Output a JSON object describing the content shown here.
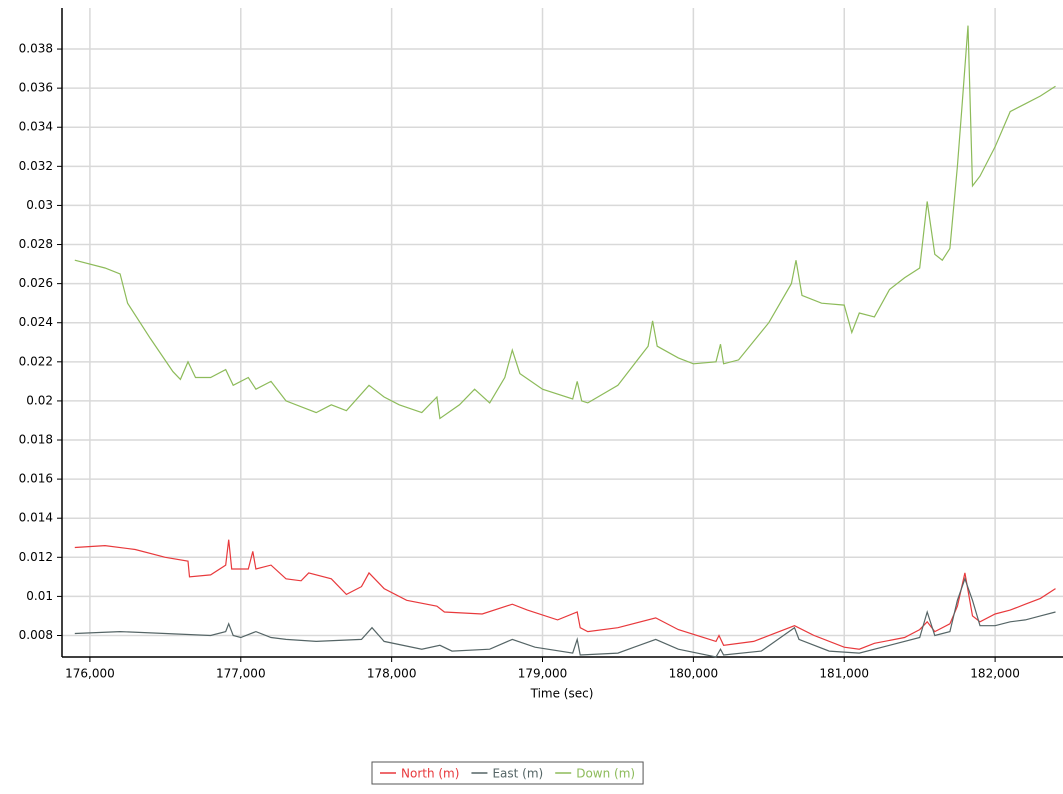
{
  "chart_data": {
    "type": "line",
    "x_label": "Time (sec)",
    "xlim": [
      175815,
      182450
    ],
    "ylim": [
      0.0069,
      0.0401
    ],
    "xticks": [
      {
        "value": 176000,
        "label": "176,000"
      },
      {
        "value": 177000,
        "label": "177,000"
      },
      {
        "value": 178000,
        "label": "178,000"
      },
      {
        "value": 179000,
        "label": "179,000"
      },
      {
        "value": 180000,
        "label": "180,000"
      },
      {
        "value": 181000,
        "label": "181,000"
      },
      {
        "value": 182000,
        "label": "182,000"
      }
    ],
    "yticks": [
      0.008,
      0.01,
      0.012,
      0.014,
      0.016,
      0.018,
      0.02,
      0.022,
      0.024,
      0.026,
      0.028,
      0.03,
      0.032,
      0.034,
      0.036,
      0.038
    ],
    "grid": true,
    "legend": "bottom",
    "series": [
      {
        "name": "North (m)",
        "color": "#e8393c",
        "x": [
          175900,
          176100,
          176300,
          176500,
          176650,
          176660,
          176800,
          176900,
          176920,
          176940,
          177050,
          177080,
          177100,
          177200,
          177300,
          177400,
          177450,
          177600,
          177700,
          177800,
          177850,
          177950,
          178100,
          178300,
          178350,
          178600,
          178800,
          178900,
          179100,
          179230,
          179250,
          179300,
          179500,
          179750,
          179900,
          180150,
          180170,
          180200,
          180400,
          180670,
          180800,
          181000,
          181100,
          181200,
          181400,
          181500,
          181550,
          181600,
          181700,
          181750,
          181800,
          181850,
          181900,
          182000,
          182100,
          182200,
          182300,
          182400
        ],
        "values": [
          0.0125,
          0.0126,
          0.0124,
          0.012,
          0.0118,
          0.011,
          0.0111,
          0.0116,
          0.0129,
          0.0114,
          0.0114,
          0.0123,
          0.0114,
          0.0116,
          0.0109,
          0.0108,
          0.0112,
          0.0109,
          0.0101,
          0.0105,
          0.0112,
          0.0104,
          0.0098,
          0.0095,
          0.0092,
          0.0091,
          0.0096,
          0.0093,
          0.0088,
          0.0092,
          0.0084,
          0.0082,
          0.0084,
          0.0089,
          0.0083,
          0.0077,
          0.008,
          0.0075,
          0.0077,
          0.0085,
          0.008,
          0.0074,
          0.0073,
          0.0076,
          0.0079,
          0.0083,
          0.0087,
          0.0082,
          0.0086,
          0.0095,
          0.0112,
          0.009,
          0.0087,
          0.0091,
          0.0093,
          0.0096,
          0.0099,
          0.0104
        ]
      },
      {
        "name": "East (m)",
        "color": "#556566",
        "x": [
          175900,
          176200,
          176500,
          176800,
          176900,
          176920,
          176950,
          177000,
          177100,
          177200,
          177300,
          177500,
          177800,
          177870,
          177950,
          178200,
          178320,
          178400,
          178650,
          178800,
          178950,
          179200,
          179230,
          179250,
          179500,
          179750,
          179900,
          180150,
          180180,
          180200,
          180450,
          180670,
          180700,
          180900,
          181100,
          181300,
          181500,
          181550,
          181600,
          181700,
          181750,
          181800,
          181850,
          181900,
          182000,
          182100,
          182200,
          182300,
          182400
        ],
        "values": [
          0.0081,
          0.0082,
          0.0081,
          0.008,
          0.0082,
          0.0086,
          0.008,
          0.0079,
          0.0082,
          0.0079,
          0.0078,
          0.0077,
          0.0078,
          0.0084,
          0.0077,
          0.0073,
          0.0075,
          0.0072,
          0.0073,
          0.0078,
          0.0074,
          0.0071,
          0.0078,
          0.007,
          0.0071,
          0.0078,
          0.0073,
          0.0069,
          0.0073,
          0.007,
          0.0072,
          0.0084,
          0.0078,
          0.0072,
          0.0071,
          0.0075,
          0.0079,
          0.0092,
          0.008,
          0.0082,
          0.0098,
          0.0109,
          0.0098,
          0.0085,
          0.0085,
          0.0087,
          0.0088,
          0.009,
          0.0092
        ]
      },
      {
        "name": "Down (m)",
        "color": "#8dbb5a",
        "x": [
          175900,
          176100,
          176200,
          176250,
          176400,
          176550,
          176600,
          176650,
          176700,
          176800,
          176900,
          176950,
          177050,
          177100,
          177200,
          177300,
          177500,
          177600,
          177700,
          177850,
          177950,
          178050,
          178200,
          178300,
          178320,
          178450,
          178550,
          178650,
          178750,
          178800,
          178850,
          179000,
          179200,
          179230,
          179260,
          179300,
          179500,
          179700,
          179730,
          179760,
          179900,
          180000,
          180150,
          180180,
          180200,
          180300,
          180500,
          180650,
          180680,
          180720,
          180850,
          181000,
          181050,
          181100,
          181200,
          181300,
          181400,
          181500,
          181550,
          181600,
          181650,
          181700,
          181750,
          181780,
          181820,
          181850,
          181900,
          182000,
          182100,
          182200,
          182300,
          182400
        ],
        "values": [
          0.0272,
          0.0268,
          0.0265,
          0.025,
          0.0232,
          0.0215,
          0.0211,
          0.022,
          0.0212,
          0.0212,
          0.0216,
          0.0208,
          0.0212,
          0.0206,
          0.021,
          0.02,
          0.0194,
          0.0198,
          0.0195,
          0.0208,
          0.0202,
          0.0198,
          0.0194,
          0.0202,
          0.0191,
          0.0198,
          0.0206,
          0.0199,
          0.0212,
          0.0226,
          0.0214,
          0.0206,
          0.0201,
          0.021,
          0.02,
          0.0199,
          0.0208,
          0.0228,
          0.0241,
          0.0228,
          0.0222,
          0.0219,
          0.022,
          0.0229,
          0.0219,
          0.0221,
          0.024,
          0.026,
          0.0272,
          0.0254,
          0.025,
          0.0249,
          0.0235,
          0.0245,
          0.0243,
          0.0257,
          0.0263,
          0.0268,
          0.0302,
          0.0275,
          0.0272,
          0.0278,
          0.032,
          0.035,
          0.0392,
          0.031,
          0.0315,
          0.033,
          0.0348,
          0.0352,
          0.0356,
          0.0361
        ]
      }
    ]
  }
}
